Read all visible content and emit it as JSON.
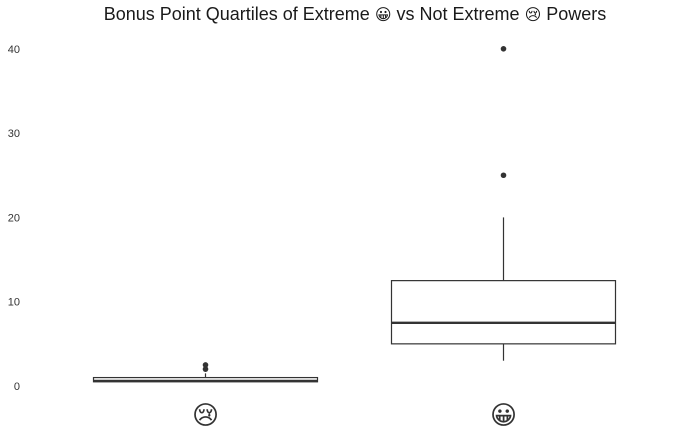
{
  "title": {
    "part1": "Bonus Point Quartiles of Extreme",
    "emoji1": "😀",
    "part2": "vs Not Extreme",
    "emoji2": "😢",
    "part3": "Powers"
  },
  "chart_data": {
    "type": "boxplot",
    "categories": [
      "😢",
      "😀"
    ],
    "ylim": [
      -1.5,
      42
    ],
    "yticks": [
      0,
      10,
      20,
      30,
      40
    ],
    "boxes": [
      {
        "category": "😢",
        "whisker_low": 0.5,
        "q1": 0.5,
        "median": 0.6,
        "q3": 1.0,
        "whisker_high": 1.5,
        "outliers": [
          2,
          2.5
        ]
      },
      {
        "category": "😀",
        "whisker_low": 3,
        "q1": 5,
        "median": 7.5,
        "q3": 12.5,
        "whisker_high": 20,
        "outliers": [
          25,
          40
        ]
      }
    ],
    "grid": false,
    "colors": {
      "box_stroke": "#333333",
      "median": "#333333",
      "outlier": "#333333",
      "fill": "#ffffff"
    }
  }
}
